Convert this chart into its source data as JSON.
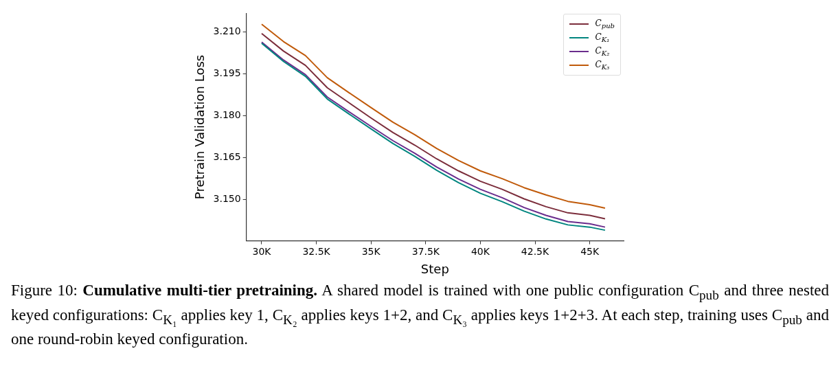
{
  "chart_data": {
    "type": "line",
    "xlabel": "Step",
    "ylabel": "Pretrain Validation Loss",
    "x": [
      30000,
      31000,
      32000,
      33000,
      34000,
      35000,
      36000,
      37000,
      38000,
      39000,
      40000,
      41000,
      42000,
      43000,
      44000,
      45000,
      45700
    ],
    "series": [
      {
        "name": "C$_{pub}$",
        "color": "#7b2d3b",
        "values": [
          3.2094,
          3.2031,
          3.198,
          3.19,
          3.1846,
          3.1792,
          3.174,
          3.1695,
          3.1646,
          3.1603,
          3.1566,
          3.1537,
          3.1503,
          3.1475,
          3.1453,
          3.1444,
          3.1432
        ]
      },
      {
        "name": "C$_{K₁}$",
        "color": "#00857f",
        "values": [
          3.2059,
          3.1994,
          3.1941,
          3.186,
          3.1806,
          3.1753,
          3.1701,
          3.1655,
          3.1605,
          3.1561,
          3.1523,
          3.1493,
          3.1459,
          3.1431,
          3.141,
          3.1402,
          3.1391
        ]
      },
      {
        "name": "C$_{K₂}$",
        "color": "#6a2c8c",
        "values": [
          3.2063,
          3.1999,
          3.1947,
          3.1867,
          3.1814,
          3.1762,
          3.1711,
          3.1666,
          3.1617,
          3.1574,
          3.1537,
          3.1507,
          3.1472,
          3.1444,
          3.1422,
          3.1414,
          3.1402
        ]
      },
      {
        "name": "C$_{K₃}$",
        "color": "#c05a0a",
        "values": [
          3.2127,
          3.2065,
          3.2015,
          3.1936,
          3.1882,
          3.1829,
          3.1777,
          3.1732,
          3.1683,
          3.164,
          3.1603,
          3.1575,
          3.1543,
          3.1517,
          3.1494,
          3.1482,
          3.147
        ]
      }
    ],
    "xlim": [
      29300,
      46550
    ],
    "xticks": [
      {
        "value": 30000,
        "label": "30K"
      },
      {
        "value": 32500,
        "label": "32.5K"
      },
      {
        "value": 35000,
        "label": "35K"
      },
      {
        "value": 37500,
        "label": "37.5K"
      },
      {
        "value": 40000,
        "label": "40K"
      },
      {
        "value": 42500,
        "label": "42.5K"
      },
      {
        "value": 45000,
        "label": "45K"
      }
    ],
    "ylim": [
      3.1353,
      3.2166
    ],
    "yticks": [
      {
        "value": 3.15,
        "label": "3.150"
      },
      {
        "value": 3.165,
        "label": "3.165"
      },
      {
        "value": 3.18,
        "label": "3.180"
      },
      {
        "value": 3.195,
        "label": "3.195"
      },
      {
        "value": 3.21,
        "label": "3.210"
      }
    ],
    "grid": false,
    "legend": "top right",
    "marker": "none",
    "line_style": "solid",
    "annotations": [
      "Figure 10: ",
      "Cumulative multi-tier pretraining.",
      " A shared model is trained with one public configuration C$_{pub}$ and three nested keyed configurations: C$_{K₁}$ applies key 1, C$_{K₂}$ applies keys 1+2, and C$_{K₃}$ applies keys 1+2+3. At each step, training uses C$_{pub}$ and one round-robin keyed configuration."
    ]
  }
}
